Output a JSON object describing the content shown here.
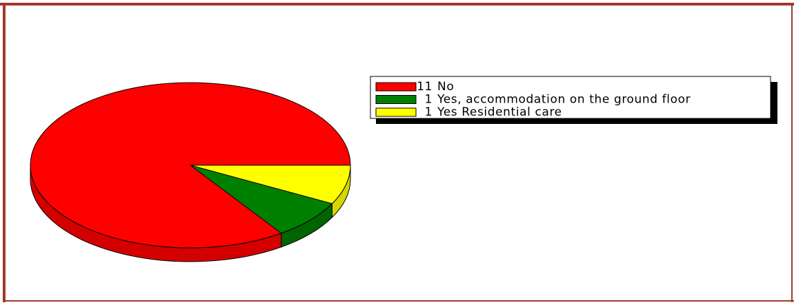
{
  "chart_data": {
    "type": "pie3d",
    "categories": [
      "No",
      "Yes, accommodation on the ground floor",
      "Yes Residential care"
    ],
    "values": [
      11,
      1,
      1
    ],
    "value_labels": [
      "11",
      "1",
      "1"
    ],
    "colors": [
      "#ff0000",
      "#008000",
      "#ffff00"
    ],
    "side_colors": [
      "#d40000",
      "#006400",
      "#d6d600"
    ]
  }
}
